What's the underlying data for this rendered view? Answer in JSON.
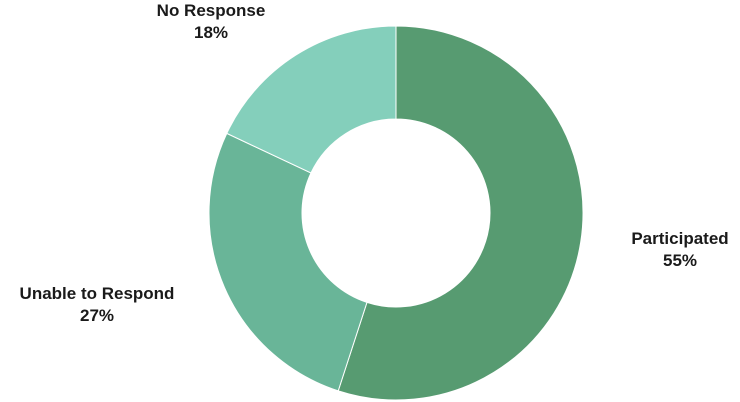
{
  "chart_data": {
    "type": "pie",
    "title": "",
    "subtitle": "",
    "slices": [
      {
        "label": "Participated",
        "value": 55,
        "value_label": "55%",
        "color": "#579b71"
      },
      {
        "label": "Unable to Respond",
        "value": 27,
        "value_label": "27%",
        "color": "#69b598"
      },
      {
        "label": "No Response",
        "value": 18,
        "value_label": "18%",
        "color": "#84cfbb"
      }
    ],
    "donut": true,
    "start_angle": "top, clockwise",
    "legend": "none (labels beside slices)"
  }
}
